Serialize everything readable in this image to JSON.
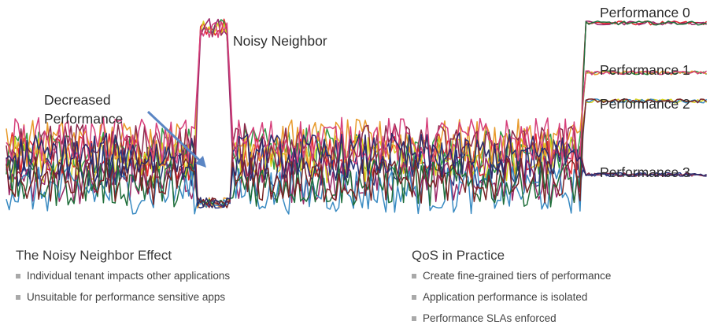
{
  "chart_data": {
    "type": "line",
    "title": "",
    "xlabel": "",
    "ylabel": "",
    "grid": false,
    "annotations": [
      {
        "text": "Noisy Neighbor"
      },
      {
        "text_lines": [
          "Decreased",
          "Performance"
        ],
        "arrow": true
      }
    ],
    "series_labels": [
      "Performance 0",
      "Performance 1",
      "Performance 2",
      "Performance 3"
    ],
    "ylim": [
      0,
      1
    ],
    "phases": [
      {
        "name": "baseline_noisy",
        "x_range": [
          0,
          0.82
        ],
        "level_range": [
          0.1,
          0.45
        ]
      },
      {
        "name": "noisy_neighbor_spike",
        "x_range": [
          0.27,
          0.32
        ],
        "spike_level": 0.95,
        "drop_level": 0.1
      },
      {
        "name": "qos_tiers",
        "x_range": [
          0.82,
          1.0
        ],
        "levels": [
          0.93,
          0.7,
          0.57,
          0.23
        ]
      }
    ],
    "colors": [
      "#e3262a",
      "#2f9a46",
      "#d9d21f",
      "#26357f",
      "#9a2767",
      "#e89a2b",
      "#3a8bc2",
      "#8a2a4a",
      "#1f6e3a",
      "#d63f7a",
      "#7a2424",
      "#2b2b6a"
    ]
  },
  "left_section": {
    "title": "The Noisy Neighbor Effect",
    "items": [
      "Individual tenant impacts other applications",
      "Unsuitable for performance sensitive apps"
    ]
  },
  "right_section": {
    "title": "QoS in Practice",
    "items": [
      "Create fine-grained tiers of performance",
      "Application performance is isolated",
      "Performance SLAs enforced"
    ]
  }
}
